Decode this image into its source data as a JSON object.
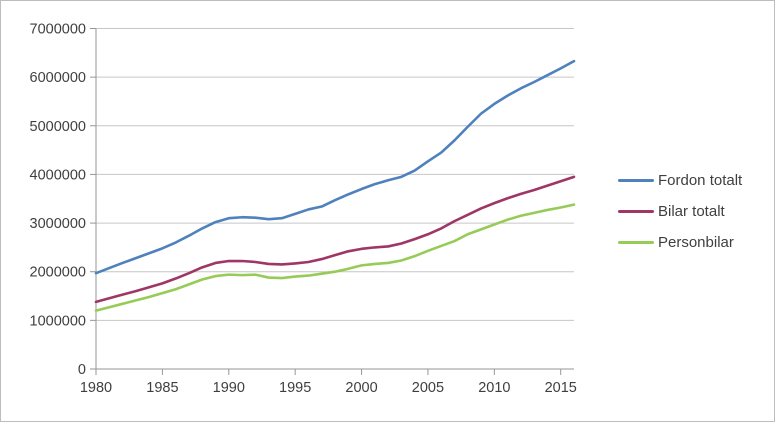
{
  "window": {
    "background": "#ffffff",
    "border_color": "#bdbdbd"
  },
  "chart_data": {
    "type": "line",
    "title": "",
    "xlabel": "",
    "ylabel": "",
    "x": [
      1980,
      1981,
      1982,
      1983,
      1984,
      1985,
      1986,
      1987,
      1988,
      1989,
      1990,
      1991,
      1992,
      1993,
      1994,
      1995,
      1996,
      1997,
      1998,
      1999,
      2000,
      2001,
      2002,
      2003,
      2004,
      2005,
      2006,
      2007,
      2008,
      2009,
      2010,
      2011,
      2012,
      2013,
      2014,
      2015,
      2016
    ],
    "series": [
      {
        "name": "Fordon totalt",
        "color": "#4f81bd",
        "values": [
          1970000,
          2075000,
          2180000,
          2280000,
          2380000,
          2480000,
          2600000,
          2740000,
          2890000,
          3020000,
          3100000,
          3120000,
          3110000,
          3080000,
          3100000,
          3190000,
          3280000,
          3340000,
          3470000,
          3590000,
          3700000,
          3800000,
          3880000,
          3950000,
          4080000,
          4270000,
          4450000,
          4700000,
          4980000,
          5250000,
          5450000,
          5620000,
          5770000,
          5900000,
          6040000,
          6180000,
          6330000
        ]
      },
      {
        "name": "Bilar totalt",
        "color": "#9e3666",
        "values": [
          1380000,
          1455000,
          1530000,
          1600000,
          1680000,
          1760000,
          1860000,
          1970000,
          2090000,
          2180000,
          2220000,
          2220000,
          2200000,
          2160000,
          2150000,
          2170000,
          2200000,
          2260000,
          2340000,
          2420000,
          2470000,
          2500000,
          2520000,
          2580000,
          2670000,
          2770000,
          2890000,
          3040000,
          3170000,
          3300000,
          3410000,
          3510000,
          3600000,
          3680000,
          3770000,
          3860000,
          3950000
        ]
      },
      {
        "name": "Personbilar",
        "color": "#97cb57",
        "values": [
          1200000,
          1270000,
          1340000,
          1410000,
          1480000,
          1560000,
          1640000,
          1740000,
          1840000,
          1910000,
          1940000,
          1930000,
          1940000,
          1880000,
          1870000,
          1900000,
          1920000,
          1960000,
          2000000,
          2060000,
          2130000,
          2160000,
          2180000,
          2230000,
          2320000,
          2430000,
          2530000,
          2630000,
          2770000,
          2870000,
          2970000,
          3070000,
          3150000,
          3210000,
          3270000,
          3320000,
          3380000
        ]
      }
    ],
    "xticks": [
      1980,
      1985,
      1990,
      1995,
      2000,
      2005,
      2010,
      2015
    ],
    "xtick_labels": [
      "1980",
      "1985",
      "1990",
      "1995",
      "2000",
      "2005",
      "2010",
      "2015"
    ],
    "yticks": [
      0,
      1000000,
      2000000,
      3000000,
      4000000,
      5000000,
      6000000,
      7000000
    ],
    "ytick_labels": [
      "0",
      "1000000",
      "2000000",
      "3000000",
      "4000000",
      "5000000",
      "6000000",
      "7000000"
    ],
    "xlim": [
      1980,
      2016
    ],
    "ylim": [
      0,
      7000000
    ],
    "grid": "horizontal",
    "gridline_color": "#c6c6c6",
    "axis_color": "#969696",
    "text_color": "#3f3f3f",
    "legend_position": "right"
  }
}
